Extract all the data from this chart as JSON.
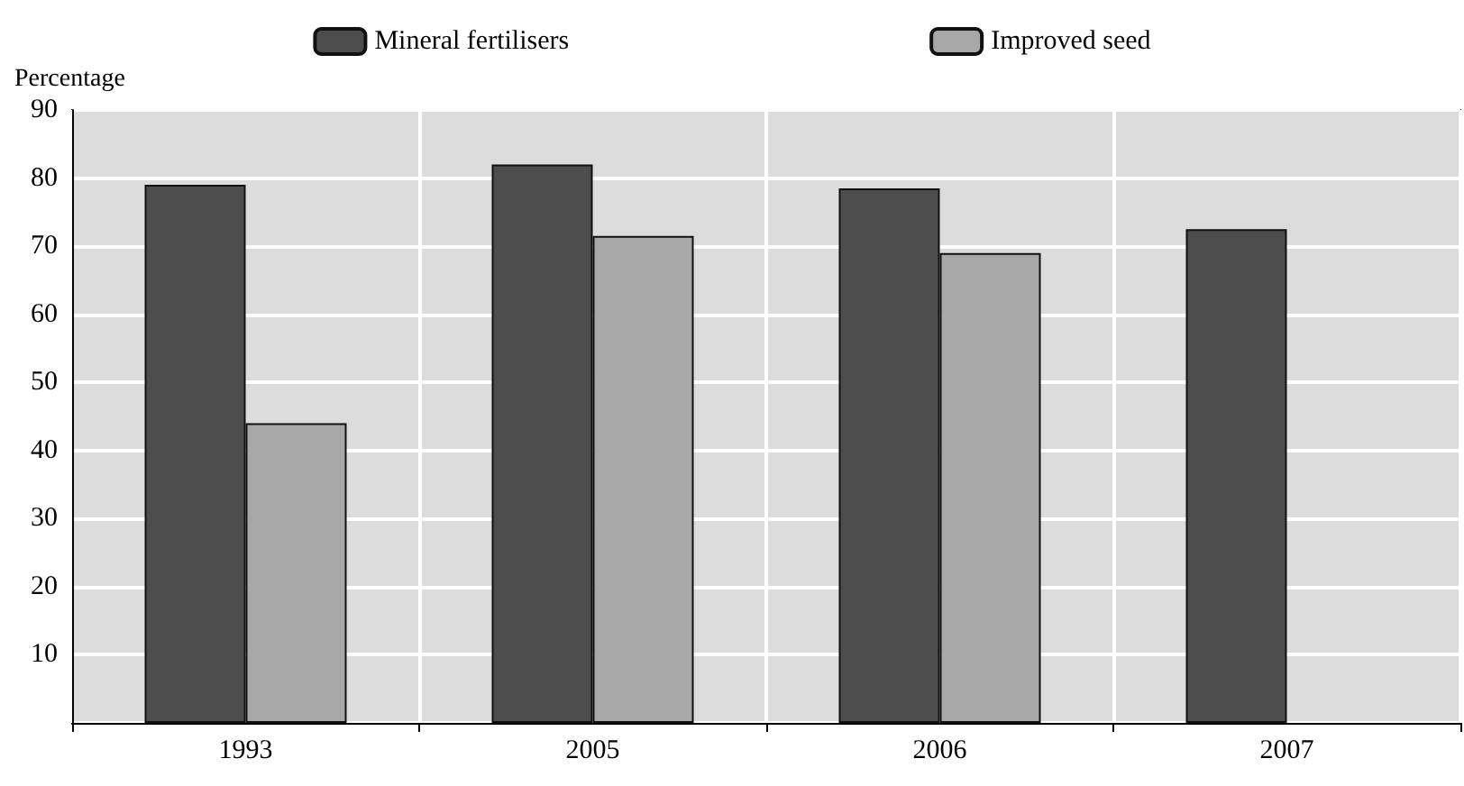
{
  "chart_data": {
    "type": "bar",
    "ylabel": "Percentage",
    "categories": [
      "1993",
      "2005",
      "2006",
      "2007"
    ],
    "series": [
      {
        "name": "Mineral fertilisers",
        "color": "#4d4d4d",
        "values": [
          79,
          82,
          78.5,
          72.5
        ]
      },
      {
        "name": "Improved seed",
        "color": "#a8a8a8",
        "values": [
          44,
          71.5,
          69,
          null
        ]
      }
    ],
    "ylim": [
      0,
      90
    ],
    "yticks": [
      {
        "value": 0,
        "label": null
      },
      10,
      20,
      30,
      40,
      50,
      60,
      70,
      80,
      90
    ],
    "grid": true,
    "legend": "top"
  }
}
